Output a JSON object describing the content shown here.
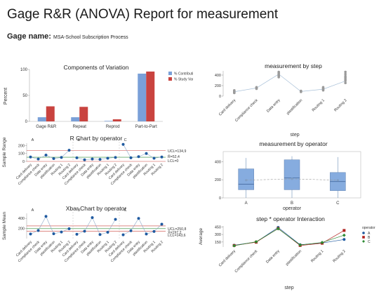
{
  "header": {
    "title": "Gage R&R (ANOVA) Report for measurement",
    "gage_label": "Gage name:",
    "gage_name": "MSA-School Subscription Process"
  },
  "colors": {
    "contribution": "#7aa0d8",
    "study_var": "#c9433f",
    "point": "#1f5aa0",
    "box": "#86acdf",
    "line_grey": "#b9b9b9",
    "op_A": "#1f5aa0",
    "op_B": "#b0211e",
    "op_C": "#2e8b34"
  },
  "chart_data": [
    {
      "id": "components",
      "type": "bar",
      "title": "Components of Variation",
      "ylabel": "Percent",
      "categories": [
        "Gage R&R",
        "Repeat",
        "Reprod",
        "Part-to-Part"
      ],
      "series": [
        {
          "name": "% Contribution",
          "values": [
            8,
            8,
            1,
            92
          ]
        },
        {
          "name": "% Study Var",
          "values": [
            29,
            28,
            4,
            96
          ]
        }
      ],
      "ylim": [
        0,
        100
      ],
      "yticks": [
        0,
        50,
        100
      ],
      "legend": "top-right"
    },
    {
      "id": "rchart",
      "type": "line",
      "title": "R Chart by operator",
      "ylabel": "Sample Range",
      "groups": [
        "A",
        "B",
        "C"
      ],
      "categories": [
        "Card delivery",
        "Compliance check",
        "Data entry",
        "plastification",
        "Routing 1",
        "Routing 2"
      ],
      "values": [
        [
          55,
          30,
          80,
          35,
          50,
          140
        ],
        [
          45,
          20,
          30,
          25,
          40,
          50
        ],
        [
          215,
          45,
          60,
          100,
          40,
          55
        ]
      ],
      "ucl": 134.9,
      "center": 52.4,
      "lcl": 0,
      "labels": {
        "ucl": "UCL=134,9",
        "center": "R̄=52,4",
        "lcl": "LCL=0"
      },
      "ylim": [
        0,
        230
      ],
      "yticks": [
        0,
        100,
        200
      ]
    },
    {
      "id": "xbarchart",
      "type": "line",
      "title": "Xbar Chart by operator",
      "ylabel": "Sample Mean",
      "groups": [
        "A",
        "B",
        "C"
      ],
      "categories": [
        "Card delivery",
        "Compliance check",
        "Data entry",
        "plastification",
        "Routing 1",
        "Routing 2"
      ],
      "values": [
        [
          90,
          160,
          440,
          95,
          130,
          195
        ],
        [
          85,
          145,
          415,
          80,
          125,
          380
        ],
        [
          75,
          155,
          400,
          90,
          140,
          285
        ]
      ],
      "ucl": 250.8,
      "center": 197.2,
      "lcl": 143.6,
      "labels": {
        "ucl": "UCL=250,8",
        "center": "X̄=197,2",
        "lcl": "LCL=143,6"
      },
      "ylim": [
        0,
        500
      ],
      "yticks": [
        200,
        400
      ]
    },
    {
      "id": "bystep",
      "type": "scatter",
      "title": "measurement by step",
      "xlabel": "step",
      "categories": [
        "Card delivery",
        "Compliance check",
        "Data entry",
        "plastification",
        "Routing 1",
        "Routing 2"
      ],
      "points": [
        [
          60,
          80,
          95,
          110,
          70
        ],
        [
          140,
          150,
          160,
          170
        ],
        [
          360,
          390,
          420,
          440,
          460,
          380,
          400
        ],
        [
          80,
          90,
          100,
          95
        ],
        [
          110,
          130,
          150,
          170,
          140
        ],
        [
          250,
          290,
          320,
          350,
          380,
          420,
          460
        ]
      ],
      "means": [
        83,
        155,
        418,
        88,
        132,
        287
      ],
      "ylim": [
        0,
        480
      ],
      "yticks": [
        0,
        200,
        400
      ]
    },
    {
      "id": "byoperator",
      "type": "box",
      "title": "measurement by operator",
      "xlabel": "operator",
      "categories": [
        "A",
        "B",
        "C"
      ],
      "boxes": [
        {
          "min": 0,
          "q1": 90,
          "median": 150,
          "q3": 320,
          "max": 440
        },
        {
          "min": 0,
          "q1": 90,
          "median": 220,
          "q3": 420,
          "max": 460
        },
        {
          "min": 0,
          "q1": 80,
          "median": 180,
          "q3": 280,
          "max": 450
        }
      ],
      "means": [
        195,
        210,
        195
      ],
      "ylim": [
        0,
        480
      ],
      "yticks": [
        0,
        200,
        400
      ]
    },
    {
      "id": "interaction",
      "type": "line",
      "title": "step * operator Interaction",
      "xlabel": "step",
      "ylabel": "Average",
      "legend_title": "operator",
      "categories": [
        "Card delivery",
        "Compliance check",
        "Data entry",
        "plastification",
        "Routing 1",
        "Routing 2"
      ],
      "series": [
        {
          "name": "A",
          "values": [
            85,
            150,
            440,
            95,
            130,
            200
          ]
        },
        {
          "name": "B",
          "values": [
            80,
            145,
            420,
            80,
            125,
            380
          ]
        },
        {
          "name": "C",
          "values": [
            75,
            155,
            415,
            90,
            140,
            285
          ]
        }
      ],
      "ylim": [
        50,
        470
      ],
      "yticks": [
        150,
        300,
        450
      ],
      "legend": "right"
    }
  ]
}
